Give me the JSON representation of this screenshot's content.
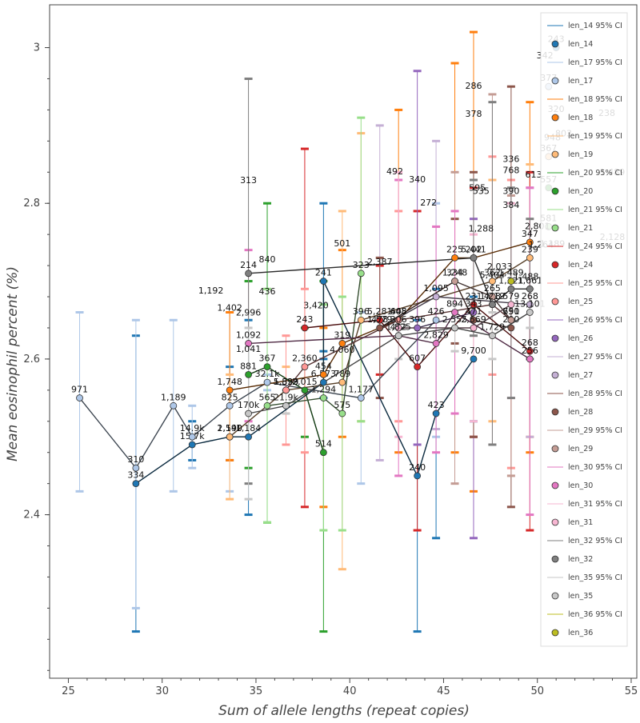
{
  "chart_data": {
    "type": "line",
    "xlabel": "Sum of allele lengths (repeat copies)",
    "ylabel": "Mean eosinophil percent (%)",
    "xlim": [
      24,
      55.3
    ],
    "ylim": [
      2.19,
      3.055
    ],
    "x_ticks": [
      25,
      30,
      35,
      40,
      45,
      50,
      55
    ],
    "y_ticks": [
      2.4,
      2.6,
      2.8,
      3.0
    ],
    "y_tick_labels": [
      "2.4",
      "2.6",
      "2.8",
      "3"
    ],
    "grid": false,
    "legend_position": "top-right",
    "series": [
      {
        "name": "len_14",
        "color": "#1f77b4",
        "points": [
          {
            "x": 28.6,
            "y": 2.44,
            "lo": 2.25,
            "hi": 2.63,
            "label": "334"
          },
          {
            "x": 31.6,
            "y": 2.49,
            "lo": 2.47,
            "hi": 2.52,
            "label": "15.7k"
          },
          {
            "x": 33.6,
            "y": 2.5,
            "lo": 2.47,
            "hi": 2.59,
            "label": "1,140"
          },
          {
            "x": 34.6,
            "y": 2.5,
            "lo": 2.4,
            "hi": 2.65,
            "label": "1,184"
          },
          {
            "x": 38.6,
            "y": 2.57,
            "lo": 2.55,
            "hi": 2.61,
            "label": "6,573"
          },
          {
            "x": 38.6,
            "y": 2.7,
            "lo": 2.6,
            "hi": 2.8,
            "label": "241"
          },
          {
            "x": 43.6,
            "y": 2.45,
            "lo": 2.25,
            "hi": 2.65,
            "label": "240"
          },
          {
            "x": 44.6,
            "y": 2.53,
            "lo": 2.37,
            "hi": 2.69,
            "label": "423"
          },
          {
            "x": 46.6,
            "y": 2.6,
            "lo": 2.52,
            "hi": 2.68,
            "label": "9,700"
          },
          {
            "x": 51.0,
            "y": 3.0,
            "lo": null,
            "hi": null,
            "label": "243"
          }
        ]
      },
      {
        "name": "len_17",
        "color": "#aec7e8",
        "points": [
          {
            "x": 25.6,
            "y": 2.55,
            "lo": 2.43,
            "hi": 2.66,
            "label": "971"
          },
          {
            "x": 28.6,
            "y": 2.46,
            "lo": 2.28,
            "hi": 2.65,
            "label": "310"
          },
          {
            "x": 30.6,
            "y": 2.54,
            "lo": 2.43,
            "hi": 2.65,
            "label": "1,189"
          },
          {
            "x": 31.6,
            "y": 2.5,
            "lo": 2.46,
            "hi": 2.54,
            "label": "14.9k"
          },
          {
            "x": 33.6,
            "y": 2.54,
            "lo": 2.43,
            "hi": 2.66,
            "label": "825"
          },
          {
            "x": 35.6,
            "y": 2.57,
            "lo": 2.56,
            "hi": 2.58,
            "label": "32.1k"
          },
          {
            "x": 40.6,
            "y": 2.55,
            "lo": 2.44,
            "hi": 2.66,
            "label": "1,177"
          },
          {
            "x": 44.6,
            "y": 2.65,
            "lo": 2.5,
            "hi": 2.8,
            "label": "426"
          },
          {
            "x": 50.6,
            "y": 2.95,
            "lo": null,
            "hi": null,
            "label": "377"
          }
        ]
      },
      {
        "name": "len_18",
        "color": "#ff7f0e",
        "points": [
          {
            "x": 33.6,
            "y": 2.56,
            "lo": 2.47,
            "hi": 2.66,
            "label": "1,748"
          },
          {
            "x": 38.6,
            "y": 2.58,
            "lo": 2.41,
            "hi": 2.64,
            "label": "454"
          },
          {
            "x": 39.6,
            "y": 2.62,
            "lo": 2.5,
            "hi": 2.74,
            "label": "319"
          },
          {
            "x": 42.6,
            "y": 2.65,
            "lo": 2.48,
            "hi": 2.92,
            "label": "405"
          },
          {
            "x": 45.6,
            "y": 2.73,
            "lo": 2.48,
            "hi": 2.98,
            "label": "225"
          },
          {
            "x": 46.6,
            "y": 2.73,
            "lo": 2.43,
            "hi": 3.02,
            "label": "202"
          },
          {
            "x": 49.6,
            "y": 2.75,
            "lo": 2.48,
            "hi": 2.93,
            "label": "347"
          },
          {
            "x": 51.0,
            "y": 2.91,
            "lo": null,
            "hi": null,
            "label": "320"
          }
        ]
      },
      {
        "name": "len_19",
        "color": "#ffbb78",
        "points": [
          {
            "x": 33.6,
            "y": 2.5,
            "lo": 2.42,
            "hi": 2.58,
            "label": "2,590"
          },
          {
            "x": 36.6,
            "y": 2.56,
            "lo": 2.53,
            "hi": 2.59,
            "label": "5,329"
          },
          {
            "x": 39.6,
            "y": 2.57,
            "lo": 2.33,
            "hi": 2.79,
            "label": "789"
          },
          {
            "x": 40.6,
            "y": 2.65,
            "lo": 2.52,
            "hi": 2.89,
            "label": "396"
          },
          {
            "x": 47.6,
            "y": 2.7,
            "lo": 2.52,
            "hi": 2.83,
            "label": "362"
          },
          {
            "x": 49.6,
            "y": 2.73,
            "lo": 2.5,
            "hi": 2.85,
            "label": "239"
          },
          {
            "x": 50.6,
            "y": 2.86,
            "lo": null,
            "hi": null,
            "label": "367"
          }
        ]
      },
      {
        "name": "len_20",
        "color": "#2ca02c",
        "points": [
          {
            "x": 34.6,
            "y": 2.58,
            "lo": 2.46,
            "hi": 2.7,
            "label": "881"
          },
          {
            "x": 35.6,
            "y": 2.59,
            "lo": 2.39,
            "hi": 2.8,
            "label": "367"
          },
          {
            "x": 37.6,
            "y": 2.56,
            "lo": 2.5,
            "hi": 2.64,
            "label": "2,015"
          },
          {
            "x": 38.6,
            "y": 2.48,
            "lo": 2.25,
            "hi": 2.7,
            "label": "514"
          },
          {
            "x": 50.6,
            "y": 2.82,
            "lo": null,
            "hi": null,
            "label": "557"
          }
        ]
      },
      {
        "name": "len_21",
        "color": "#98df8a",
        "points": [
          {
            "x": 35.6,
            "y": 2.54,
            "lo": 2.39,
            "hi": 2.69,
            "label": "565"
          },
          {
            "x": 38.6,
            "y": 2.55,
            "lo": 2.38,
            "hi": 2.67,
            "label": "1,294"
          },
          {
            "x": 39.6,
            "y": 2.53,
            "lo": 2.38,
            "hi": 2.68,
            "label": "575"
          },
          {
            "x": 40.6,
            "y": 2.71,
            "lo": 2.52,
            "hi": 2.91,
            "label": "323"
          },
          {
            "x": 50.6,
            "y": 2.77,
            "lo": null,
            "hi": null,
            "label": "581"
          }
        ]
      },
      {
        "name": "len_24",
        "color": "#d62728",
        "points": [
          {
            "x": 37.6,
            "y": 2.64,
            "lo": 2.41,
            "hi": 2.87,
            "label": "243"
          },
          {
            "x": 41.6,
            "y": 2.65,
            "lo": 2.58,
            "hi": 2.72,
            "label": "5,281"
          },
          {
            "x": 43.6,
            "y": 2.59,
            "lo": 2.38,
            "hi": 2.79,
            "label": "607"
          },
          {
            "x": 46.6,
            "y": 2.67,
            "lo": 2.5,
            "hi": 2.82,
            "label": "231"
          },
          {
            "x": 49.6,
            "y": 2.61,
            "lo": 2.38,
            "hi": 2.84,
            "label": "268"
          }
        ]
      },
      {
        "name": "len_25",
        "color": "#ff9896",
        "points": [
          {
            "x": 36.6,
            "y": 2.56,
            "lo": 2.49,
            "hi": 2.63,
            "label": "1,893"
          },
          {
            "x": 37.6,
            "y": 2.59,
            "lo": 2.48,
            "hi": 2.69,
            "label": "2,360"
          },
          {
            "x": 42.6,
            "y": 2.65,
            "lo": 2.52,
            "hi": 2.79,
            "label": "648"
          },
          {
            "x": 47.6,
            "y": 2.67,
            "lo": 2.58,
            "hi": 2.86,
            "label": "488"
          },
          {
            "x": 48.6,
            "y": 2.65,
            "lo": 2.46,
            "hi": 2.83,
            "label": "651"
          }
        ]
      },
      {
        "name": "len_26",
        "color": "#9467bd",
        "points": [
          {
            "x": 43.6,
            "y": 2.64,
            "lo": 2.49,
            "hi": 2.97,
            "label": "396"
          },
          {
            "x": 46.6,
            "y": 2.66,
            "lo": 2.37,
            "hi": 2.78,
            "label": "343"
          }
        ]
      },
      {
        "name": "len_27",
        "color": "#c5b0d5",
        "points": [
          {
            "x": 41.6,
            "y": 2.64,
            "lo": 2.47,
            "hi": 2.9,
            "label": "478"
          },
          {
            "x": 44.6,
            "y": 2.68,
            "lo": 2.51,
            "hi": 2.88,
            "label": "1,095"
          },
          {
            "x": 49.6,
            "y": 2.67,
            "lo": 2.5,
            "hi": 2.82,
            "label": "268"
          }
        ]
      },
      {
        "name": "len_28",
        "color": "#8c564b",
        "points": [
          {
            "x": 41.6,
            "y": 2.64,
            "lo": 2.55,
            "hi": 2.73,
            "label": "1,579"
          },
          {
            "x": 45.6,
            "y": 2.7,
            "lo": 2.62,
            "hi": 2.78,
            "label": "1,248"
          },
          {
            "x": 46.6,
            "y": 2.65,
            "lo": 2.5,
            "hi": 2.84,
            "label": "471"
          },
          {
            "x": 48.6,
            "y": 2.64,
            "lo": 2.41,
            "hi": 2.95,
            "label": "200"
          }
        ]
      },
      {
        "name": "len_29",
        "color": "#c49c94",
        "points": [
          {
            "x": 45.6,
            "y": 2.7,
            "lo": 2.44,
            "hi": 2.84,
            "label": "334"
          },
          {
            "x": 47.6,
            "y": 2.68,
            "lo": 2.49,
            "hi": 2.94,
            "label": "265"
          },
          {
            "x": 48.6,
            "y": 2.65,
            "lo": 2.45,
            "hi": 2.81,
            "label": "790"
          }
        ]
      },
      {
        "name": "len_30",
        "color": "#e377c2",
        "points": [
          {
            "x": 34.6,
            "y": 2.62,
            "lo": 2.52,
            "hi": 2.74,
            "label": "1,092"
          },
          {
            "x": 42.6,
            "y": 2.63,
            "lo": 2.45,
            "hi": 2.83,
            "label": "432"
          },
          {
            "x": 44.6,
            "y": 2.62,
            "lo": 2.48,
            "hi": 2.77,
            "label": "2,829"
          },
          {
            "x": 45.6,
            "y": 2.66,
            "lo": 2.53,
            "hi": 2.79,
            "label": "894"
          },
          {
            "x": 49.6,
            "y": 2.6,
            "lo": 2.4,
            "hi": 2.82,
            "label": "256"
          }
        ]
      },
      {
        "name": "len_31",
        "color": "#f7b6d2",
        "points": [
          {
            "x": 42.6,
            "y": 2.64,
            "lo": 2.5,
            "hi": 2.84,
            "label": "306"
          },
          {
            "x": 46.6,
            "y": 2.64,
            "lo": 2.52,
            "hi": 2.76,
            "label": "2,669"
          },
          {
            "x": 48.6,
            "y": 2.67,
            "lo": 2.55,
            "hi": 2.8,
            "label": "579"
          }
        ]
      },
      {
        "name": "len_32",
        "color": "#7f7f7f",
        "points": [
          {
            "x": 34.6,
            "y": 2.71,
            "lo": 2.44,
            "hi": 2.96,
            "label": "214"
          },
          {
            "x": 46.6,
            "y": 2.73,
            "lo": 2.63,
            "hi": 2.83,
            "label": "5,441"
          },
          {
            "x": 47.6,
            "y": 2.67,
            "lo": 2.49,
            "hi": 2.93,
            "label": "1,219"
          },
          {
            "x": 48.6,
            "y": 2.69,
            "lo": 2.55,
            "hi": 2.82,
            "label": "1,221"
          },
          {
            "x": 49.6,
            "y": 2.69,
            "lo": 2.6,
            "hi": 2.78,
            "label": "1,661"
          }
        ]
      },
      {
        "name": "len_35",
        "color": "#c7c7c7",
        "points": [
          {
            "x": 34.6,
            "y": 2.53,
            "lo": 2.42,
            "hi": 2.64,
            "label": "170k"
          },
          {
            "x": 36.6,
            "y": 2.54,
            "lo": 2.53,
            "hi": 2.56,
            "label": "21.9k"
          },
          {
            "x": 42.6,
            "y": 2.63,
            "lo": 2.6,
            "hi": 2.66,
            "label": "1,825"
          },
          {
            "x": 45.6,
            "y": 2.64,
            "lo": 2.61,
            "hi": 2.67,
            "label": "2,555"
          },
          {
            "x": 47.6,
            "y": 2.63,
            "lo": 2.6,
            "hi": 2.66,
            "label": "1,729"
          },
          {
            "x": 49.6,
            "y": 2.66,
            "lo": 2.64,
            "hi": 2.69,
            "label": "13,101"
          }
        ]
      },
      {
        "name": "len_36",
        "color": "#bcbd22",
        "points": [
          {
            "x": 48.6,
            "y": 2.7,
            "lo": null,
            "hi": null,
            "label": "1,489"
          }
        ]
      }
    ],
    "extra_labels": [
      "1,402",
      "2,996",
      "1,041",
      "3,420",
      "4,060",
      "1,489",
      "803",
      "948",
      "238",
      "342",
      "286",
      "378",
      "2,128",
      "1,189",
      "1,488",
      "2,033",
      "5,404",
      "2,801",
      "1,264",
      "613",
      "340",
      "272",
      "384",
      "390",
      "768",
      "336",
      "595",
      "535",
      "1,288",
      "1,192",
      "313",
      "840",
      "436",
      "2,387",
      "501",
      "492"
    ]
  }
}
